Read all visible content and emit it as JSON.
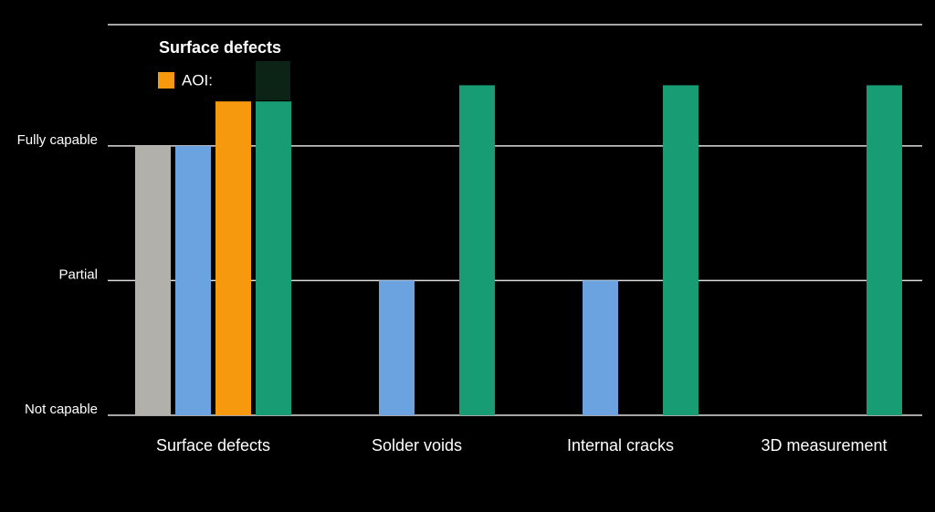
{
  "chart_data": {
    "type": "bar",
    "categories": [
      "Surface defects",
      "Solder voids",
      "Internal cracks",
      "3D measurement"
    ],
    "series": [
      {
        "color": "#b1b0aa",
        "values": [
          2,
          0,
          0,
          0
        ]
      },
      {
        "color": "#6aa3e0",
        "values": [
          2,
          1,
          1,
          0
        ]
      },
      {
        "name": "AOI",
        "color": "#f7990f",
        "values": [
          2.33,
          0,
          0,
          0
        ]
      },
      {
        "color": "#189c73",
        "values": [
          2.33,
          2.45,
          2.45,
          2.45
        ]
      }
    ],
    "ylim": [
      0,
      2.9
    ],
    "yticks": [
      {
        "value": 0,
        "label": "Not capable"
      },
      {
        "value": 1,
        "label": "Partial"
      },
      {
        "value": 2,
        "label": "Fully capable"
      }
    ],
    "grid": true,
    "tooltip": {
      "title": "Surface defects",
      "label": "AOI:"
    }
  }
}
